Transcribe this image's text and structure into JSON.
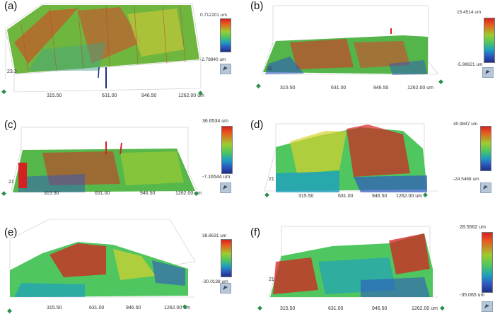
{
  "panels": [
    {
      "label": "(a)",
      "max": "0.712201 um",
      "min": "-2.78840 um",
      "ticks": [
        "315.50",
        "631.00",
        "946.50",
        "1262.00 um"
      ],
      "zlabel": "23.3"
    },
    {
      "label": "(b)",
      "max": "15.4514 um",
      "min": "-5.98621 um",
      "ticks": [
        "315.50",
        "631.00",
        "946.50",
        "1262.00 um"
      ],
      "zlabel": "21"
    },
    {
      "label": "(c)",
      "max": "36.6534 um",
      "min": "-7.16544 um",
      "ticks": [
        "315.50",
        "631.00",
        "946.50",
        "1262.00 um"
      ],
      "zlabel": "21"
    },
    {
      "label": "(d)",
      "max": "40.9847 um",
      "min": "-24.5468 um",
      "ticks": [
        "315.50",
        "631.00",
        "946.50",
        "1262.00 um"
      ],
      "zlabel": "21"
    },
    {
      "label": "(e)",
      "max": "38.8631 um",
      "min": "-30.0138 um",
      "ticks": [
        "315.50",
        "631.00",
        "946.50",
        "1262.00 um"
      ],
      "zlabel": ""
    },
    {
      "label": "(f)",
      "max": "28.5562 um",
      "min": "-35.065 um",
      "ticks": [
        "315.50",
        "631.00",
        "946.50",
        "1262.00 um"
      ],
      "zlabel": "21"
    }
  ],
  "colors": {
    "high": "#d42121",
    "mid": "#4fc65f",
    "low": "#1c2f8a",
    "grid": "#bdbdbd"
  }
}
